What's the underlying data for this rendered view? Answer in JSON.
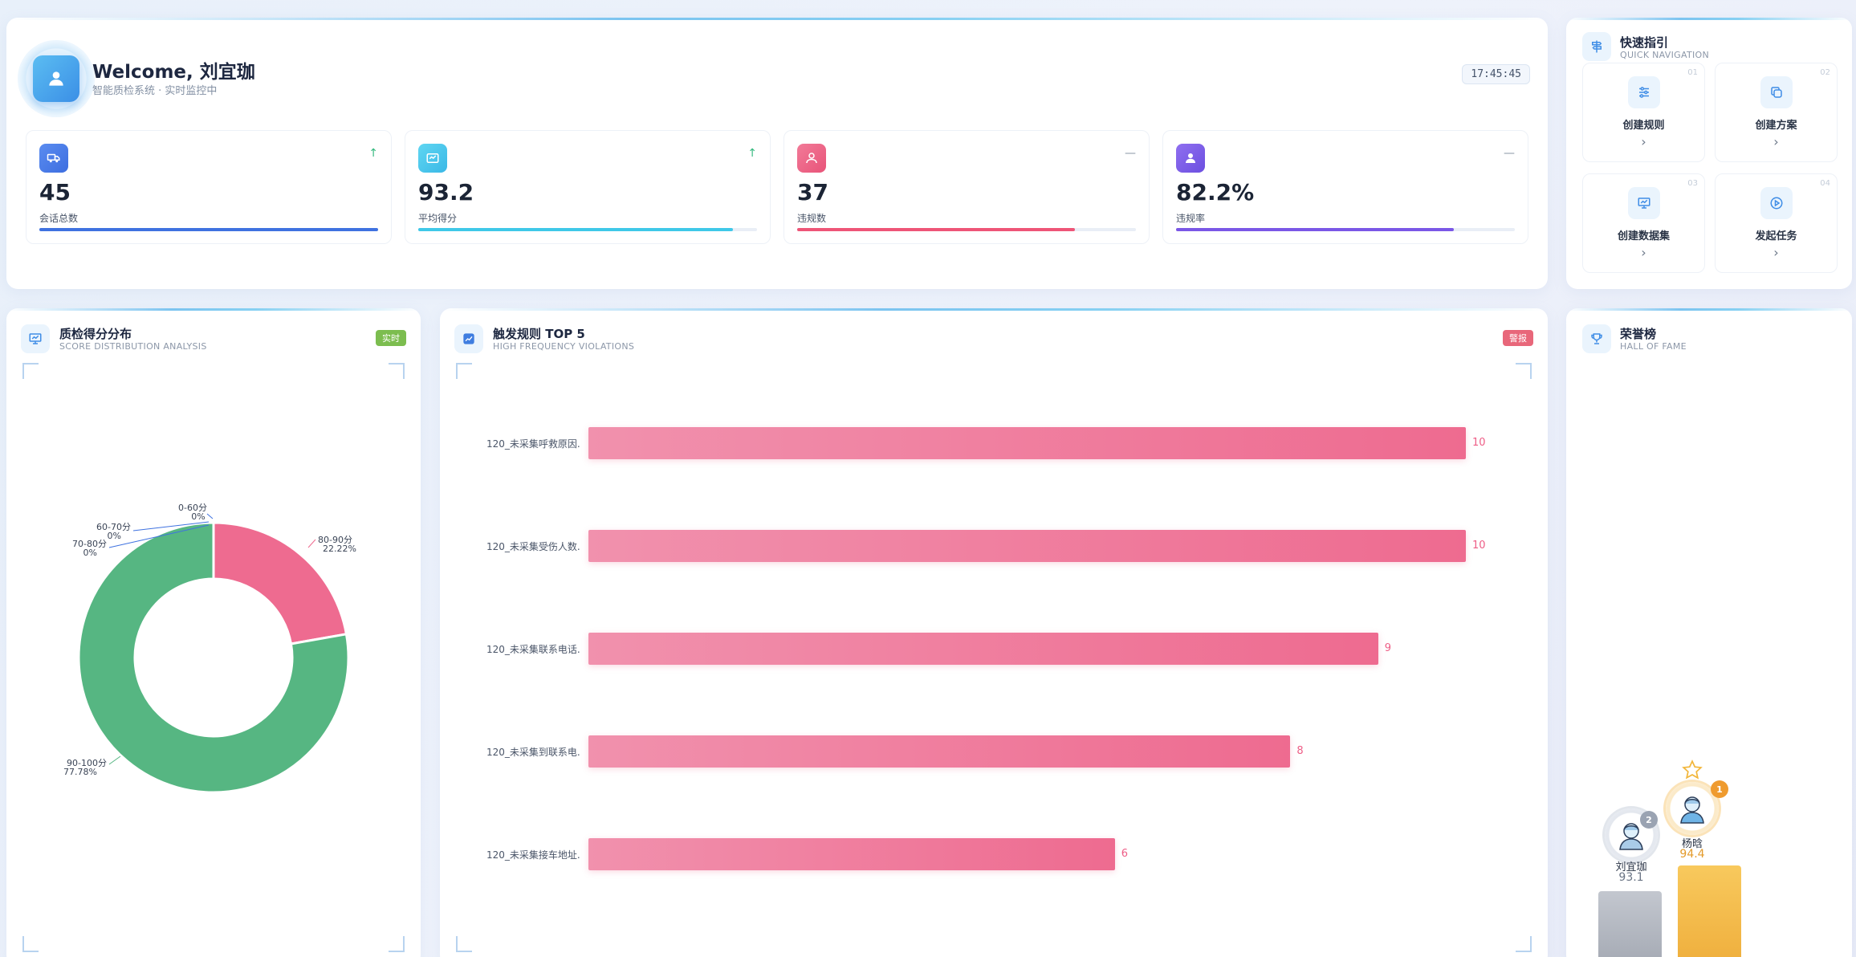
{
  "welcome": {
    "title": "Welcome, 刘宜珈",
    "subtitle": "智能质检系统 · 实时监控中",
    "clock": "17:45:45",
    "stats": [
      {
        "value": "45",
        "label": "会话总数",
        "trend": "↑",
        "progress": 1.0,
        "color": "#3f72e0",
        "icon": "truck-icon"
      },
      {
        "value": "93.2",
        "label": "平均得分",
        "trend": "↑",
        "progress": 0.93,
        "color": "#3fc8e8",
        "icon": "score-card-icon"
      },
      {
        "value": "37",
        "label": "违规数",
        "trend": "—",
        "progress": 0.82,
        "color": "#ee5577",
        "icon": "user-warning-icon"
      },
      {
        "value": "82.2%",
        "label": "违规率",
        "trend": "—",
        "progress": 0.82,
        "color": "#7a57e6",
        "icon": "user-icon"
      }
    ]
  },
  "quicknav": {
    "title": "快速指引",
    "subtitle": "QUICK NAVIGATION",
    "items": [
      {
        "num": "01",
        "label": "创建规则",
        "icon": "sliders-icon"
      },
      {
        "num": "02",
        "label": "创建方案",
        "icon": "copy-icon"
      },
      {
        "num": "03",
        "label": "创建数据集",
        "icon": "presentation-icon"
      },
      {
        "num": "04",
        "label": "发起任务",
        "icon": "play-icon"
      }
    ]
  },
  "scoredist": {
    "title": "质检得分分布",
    "subtitle": "SCORE DISTRIBUTION ANALYSIS",
    "badge": "实时"
  },
  "top5": {
    "title": "触发规则 TOP 5",
    "subtitle": "HIGH FREQUENCY VIOLATIONS",
    "badge": "警报"
  },
  "fame": {
    "title": "荣誉榜",
    "subtitle": "HALL OF FAME",
    "podium": [
      {
        "rank": "1",
        "name": "杨晗",
        "score": "94.4"
      },
      {
        "rank": "2",
        "name": "刘宜珈",
        "score": "93.1"
      }
    ]
  },
  "chart_data": [
    {
      "type": "pie",
      "donut": true,
      "labels": [
        "0-60分",
        "60-70分",
        "70-80分",
        "80-90分",
        "90-100分"
      ],
      "values": [
        0,
        0,
        0,
        22.22,
        77.78
      ],
      "value_labels": [
        "0%",
        "0%",
        "0%",
        "22.22%",
        "77.78%"
      ],
      "colors": [
        "#3f72e0",
        "#3f72e0",
        "#3f72e0",
        "#ee6b90",
        "#56b682"
      ]
    },
    {
      "type": "bar",
      "orientation": "horizontal",
      "categories": [
        "120_未采集呼救原因...",
        "120_未采集受伤人数...",
        "120_未采集联系电话...",
        "120_未采集到联系电...",
        "120_未采集接车地址..."
      ],
      "values": [
        10,
        10,
        9,
        8,
        6
      ],
      "xlim": [
        0,
        10
      ]
    }
  ]
}
